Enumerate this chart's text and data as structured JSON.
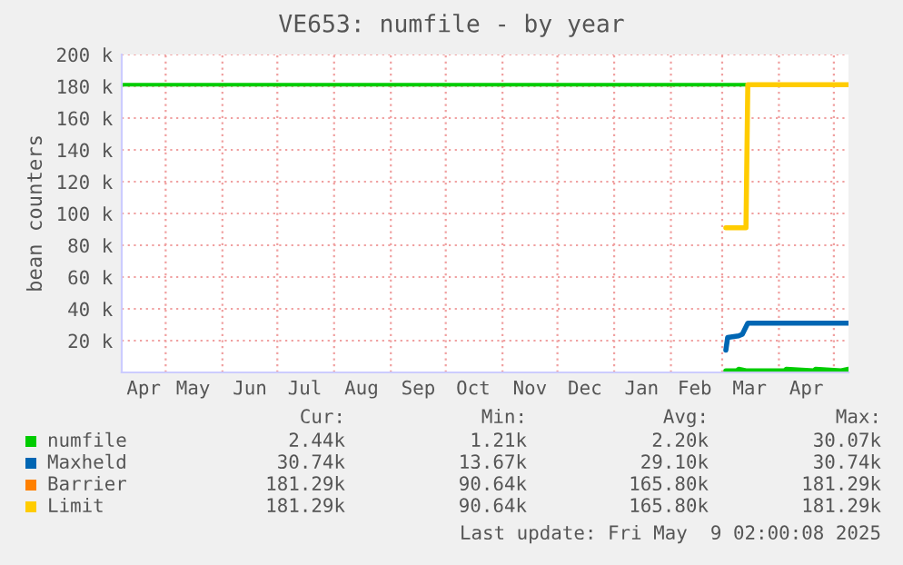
{
  "chart_data": {
    "type": "line",
    "title": "VE653: numfile - by year",
    "ylabel": "bean counters",
    "xlim": [
      "2024-04-07",
      "2025-05-09"
    ],
    "xticks": [
      {
        "value": "2024-04-19",
        "label": "Apr"
      },
      {
        "value": "2024-05-16",
        "label": "May"
      },
      {
        "value": "2024-06-16",
        "label": "Jun"
      },
      {
        "value": "2024-07-16",
        "label": "Jul"
      },
      {
        "value": "2024-08-16",
        "label": "Aug"
      },
      {
        "value": "2024-09-16",
        "label": "Sep"
      },
      {
        "value": "2024-10-16",
        "label": "Oct"
      },
      {
        "value": "2024-11-16",
        "label": "Nov"
      },
      {
        "value": "2024-12-16",
        "label": "Dec"
      },
      {
        "value": "2025-01-16",
        "label": "Jan"
      },
      {
        "value": "2025-02-14",
        "label": "Feb"
      },
      {
        "value": "2025-03-16",
        "label": "Mar"
      },
      {
        "value": "2025-04-16",
        "label": "Apr"
      },
      {
        "value": "2024-05-01",
        "label": null
      },
      {
        "value": "2024-06-01",
        "label": null
      },
      {
        "value": "2024-07-01",
        "label": null
      },
      {
        "value": "2024-08-01",
        "label": null
      },
      {
        "value": "2024-09-01",
        "label": null
      },
      {
        "value": "2024-10-01",
        "label": null
      },
      {
        "value": "2024-11-01",
        "label": null
      },
      {
        "value": "2024-12-01",
        "label": null
      },
      {
        "value": "2025-01-01",
        "label": null
      },
      {
        "value": "2025-02-01",
        "label": null
      },
      {
        "value": "2025-03-01",
        "label": null
      },
      {
        "value": "2025-04-01",
        "label": null
      },
      {
        "value": "2025-05-01",
        "label": null
      }
    ],
    "ylim": [
      0,
      200000
    ],
    "yticks": [
      {
        "value": 20000,
        "label": "20 k"
      },
      {
        "value": 40000,
        "label": "40 k"
      },
      {
        "value": 60000,
        "label": "60 k"
      },
      {
        "value": 80000,
        "label": "80 k"
      },
      {
        "value": 100000,
        "label": "100 k"
      },
      {
        "value": 120000,
        "label": "120 k"
      },
      {
        "value": 140000,
        "label": "140 k"
      },
      {
        "value": 160000,
        "label": "160 k"
      },
      {
        "value": 180000,
        "label": "180 k"
      },
      {
        "value": 200000,
        "label": "200 k"
      }
    ],
    "grid": true,
    "legend": "bottom",
    "marker": "none",
    "line_style": "solid",
    "ref_lines": [
      {
        "axis": "y",
        "value": 181000,
        "color": "#00cc00"
      }
    ],
    "series": [
      {
        "name": "numfile",
        "color": "#00cc00",
        "x": [
          "2025-03-03",
          "2025-03-09",
          "2025-03-10",
          "2025-03-14",
          "2025-04-04",
          "2025-04-05",
          "2025-04-20",
          "2025-04-21",
          "2025-05-05",
          "2025-05-09"
        ],
        "values": [
          1000,
          1000,
          2000,
          1000,
          1000,
          2000,
          1000,
          2000,
          1000,
          2000
        ]
      },
      {
        "name": "Maxheld",
        "color": "#0066b3",
        "x": [
          "2025-03-03",
          "2025-03-04",
          "2025-03-10",
          "2025-03-12",
          "2025-03-15",
          "2025-05-09"
        ],
        "values": [
          14000,
          22000,
          23000,
          24000,
          31000,
          31000
        ]
      },
      {
        "name": "Barrier",
        "color": "#ff8000"
      },
      {
        "name": "Limit",
        "color": "#ffcc00",
        "x": [
          "2025-03-03",
          "2025-03-14",
          "2025-03-15",
          "2025-05-09"
        ],
        "values": [
          91000,
          91000,
          181000,
          181000
        ]
      }
    ],
    "annotations": [
      "Cur:",
      "Min:",
      "Avg:",
      "Max:",
      "2.44k",
      "1.21k",
      "2.20k",
      "30.07k",
      "30.74k",
      "13.67k",
      "29.10k",
      "30.74k",
      "181.29k",
      "90.64k",
      "165.80k",
      "181.29k",
      "181.29k",
      "90.64k",
      "165.80k",
      "181.29k",
      "Last update: Fri May  9 02:00:08 2025"
    ]
  }
}
